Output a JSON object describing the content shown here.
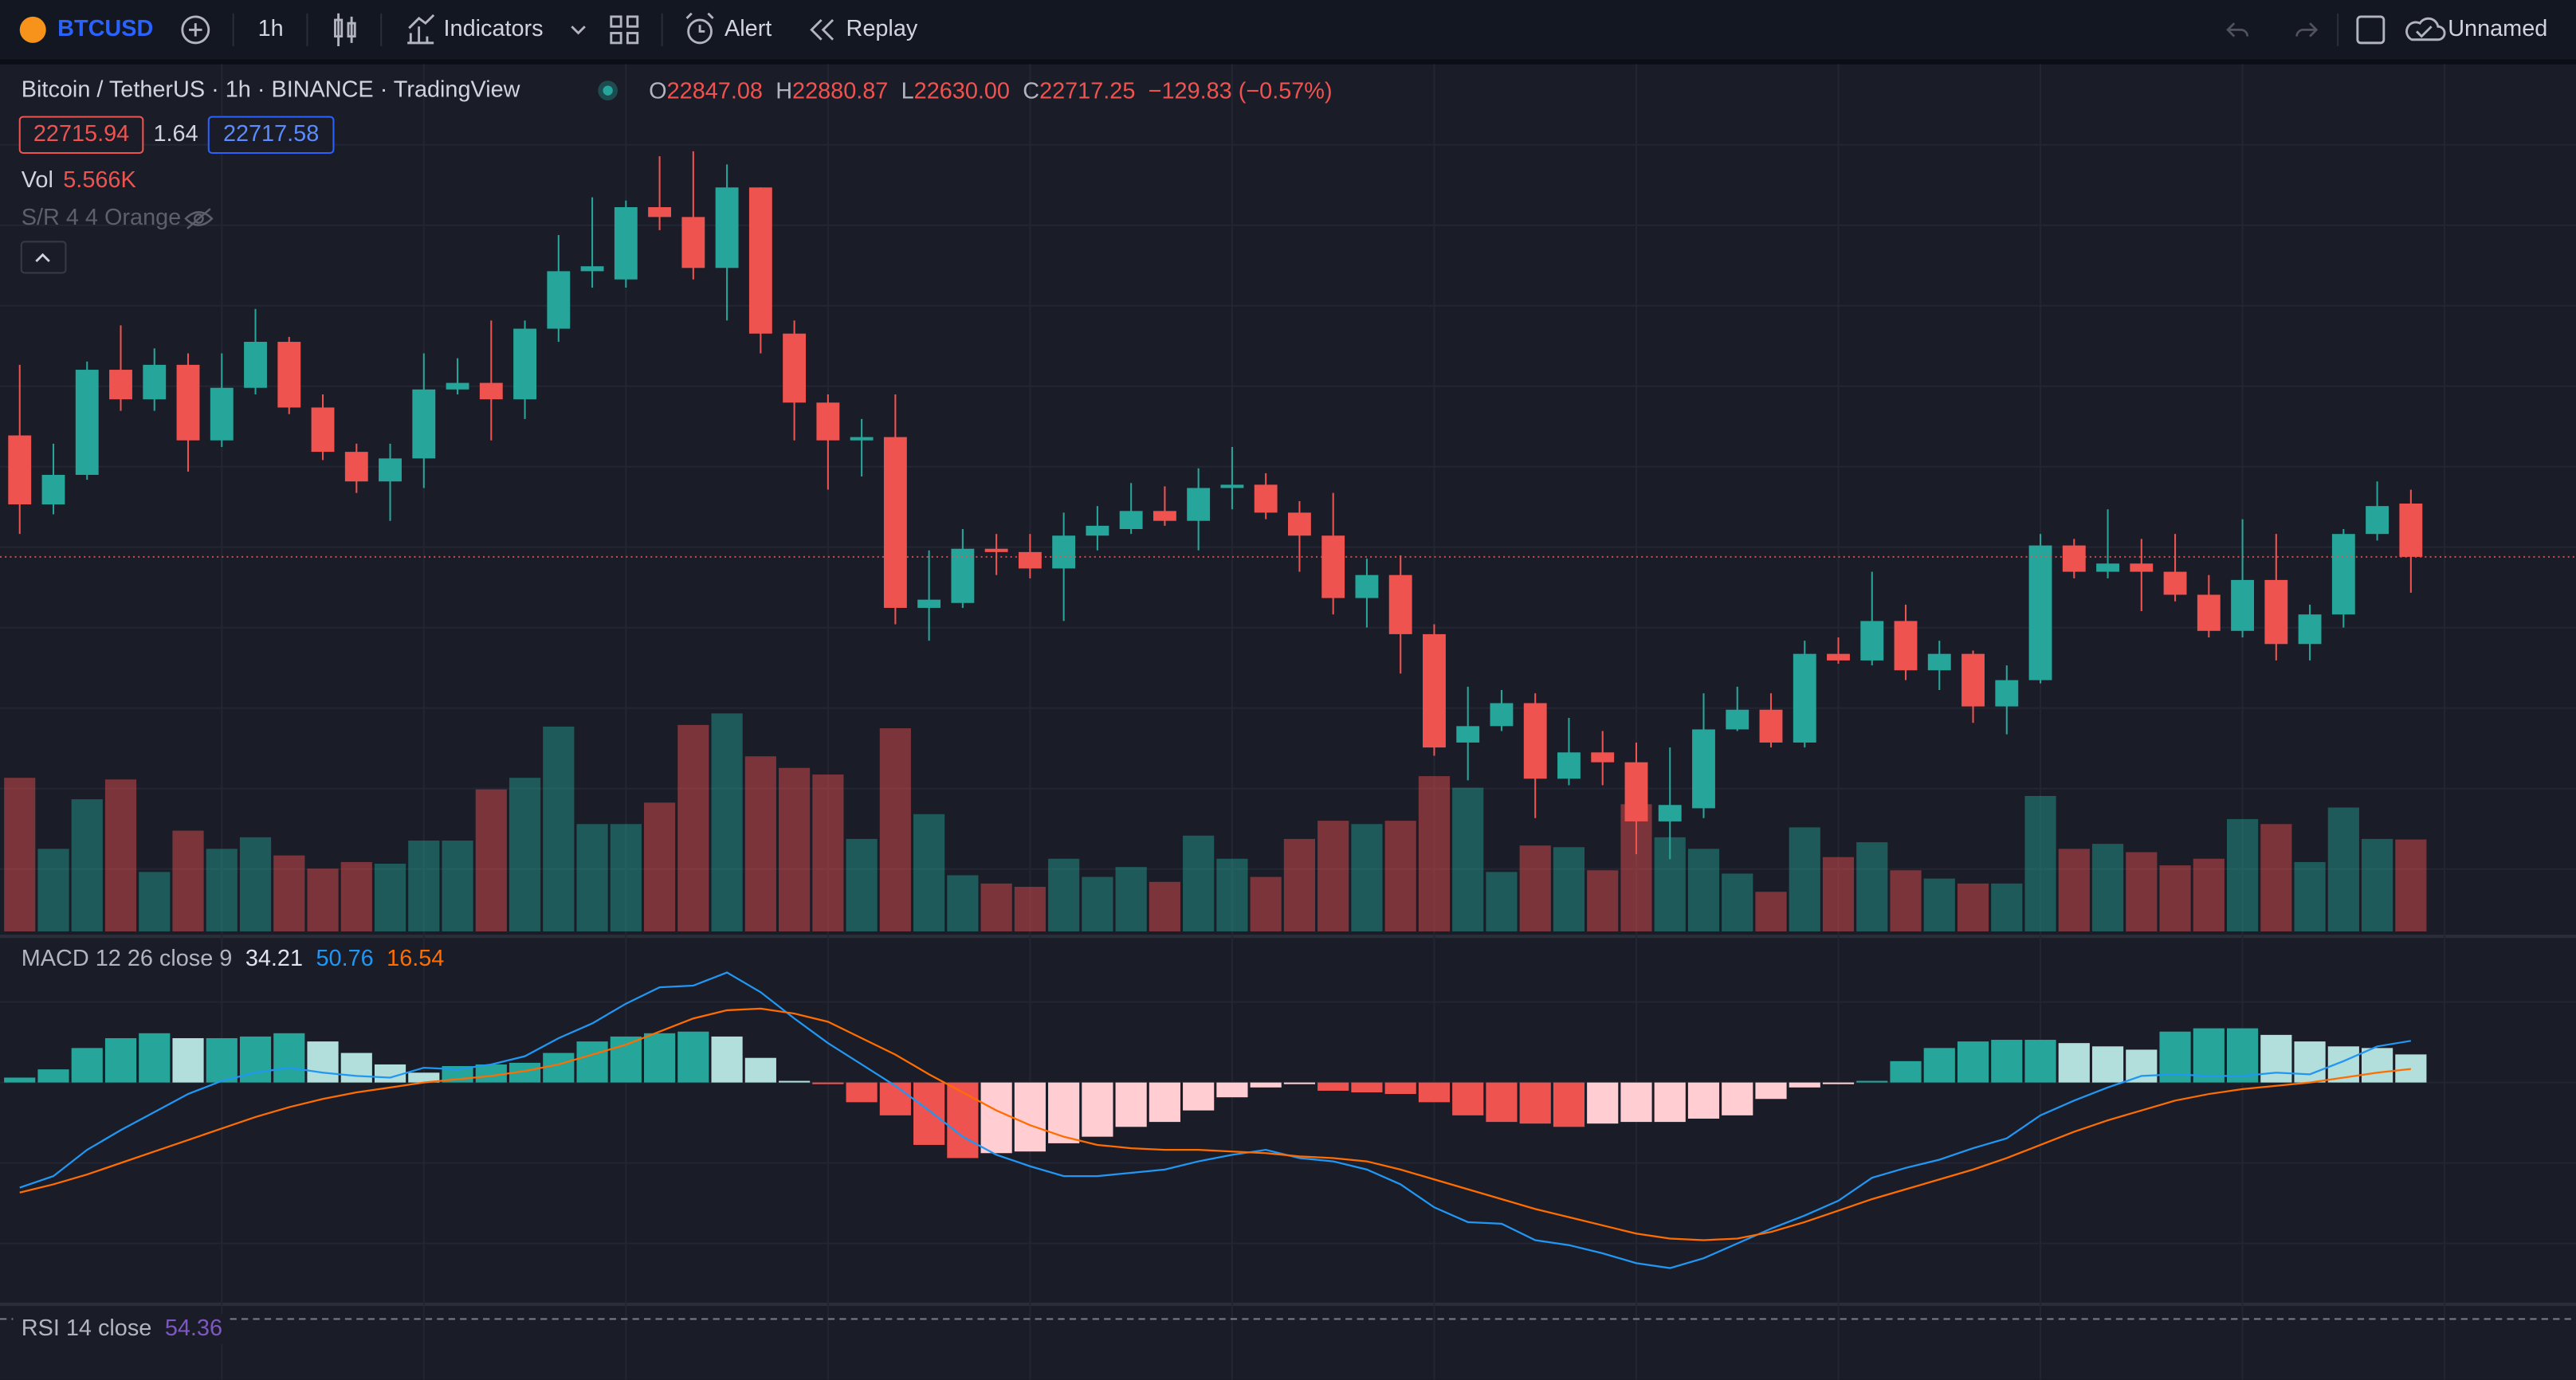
{
  "toolbar": {
    "symbol": "BTCUSD",
    "interval": "1h",
    "indicators": "Indicators",
    "alert": "Alert",
    "replay": "Replay",
    "layout_name": "Unnamed"
  },
  "legend": {
    "title": "Bitcoin / TetherUS · 1h · BINANCE · TradingView",
    "open_prefix": "O",
    "high_prefix": "H",
    "low_prefix": "L",
    "close_prefix": "C",
    "change": "−129.83 (−0.57%)",
    "bid": "22715.94",
    "spread": "1.64",
    "ask": "22717.58",
    "sr": "S/R 4 4 Orange",
    "rsi_title": "RSI 14 close",
    "rsi_value": "54.36"
  },
  "chart_data": [
    {
      "type": "candlestick",
      "open": [
        23013,
        22845,
        22917,
        23173,
        23101,
        23185,
        23001,
        23129,
        23241,
        23081,
        22973,
        22901,
        22957,
        23125,
        23141,
        23101,
        23273,
        23413,
        23393,
        23569,
        23545,
        23421,
        23617,
        23261,
        23093,
        23001,
        23009,
        22593,
        22605,
        22737,
        22729,
        22689,
        22769,
        22785,
        22829,
        22805,
        22885,
        22893,
        22825,
        22769,
        22617,
        22673,
        22529,
        22265,
        22305,
        22361,
        22177,
        22241,
        22217,
        22073,
        22105,
        22297,
        22345,
        22265,
        22481,
        22465,
        22561,
        22441,
        22481,
        22353,
        22417,
        22745,
        22681,
        22701,
        22681,
        22625,
        22537,
        22661,
        22505,
        22577,
        22773,
        22847.08
      ],
      "high": [
        23185,
        22993,
        23193,
        23281,
        23225,
        23213,
        23213,
        23321,
        23253,
        23113,
        22993,
        22993,
        23213,
        23201,
        23293,
        23293,
        23501,
        23593,
        23585,
        23693,
        23705,
        23673,
        23617,
        23293,
        23113,
        23053,
        23113,
        22733,
        22785,
        22773,
        22773,
        22825,
        22841,
        22897,
        22889,
        22933,
        22985,
        22921,
        22853,
        22873,
        22713,
        22721,
        22553,
        22401,
        22393,
        22385,
        22325,
        22293,
        22265,
        22253,
        22385,
        22401,
        22385,
        22513,
        22521,
        22681,
        22601,
        22513,
        22489,
        22453,
        22773,
        22761,
        22833,
        22761,
        22773,
        22673,
        22809,
        22773,
        22601,
        22785,
        22901,
        22880.87
      ],
      "low": [
        22773,
        22821,
        22905,
        23073,
        23073,
        22925,
        22985,
        23113,
        23065,
        22953,
        22873,
        22805,
        22885,
        23113,
        23001,
        23053,
        23241,
        23373,
        23373,
        23513,
        23393,
        23293,
        23213,
        23001,
        22881,
        22913,
        22553,
        22513,
        22593,
        22673,
        22665,
        22561,
        22733,
        22773,
        22793,
        22733,
        22833,
        22809,
        22681,
        22577,
        22545,
        22433,
        22233,
        22173,
        22293,
        22081,
        22161,
        22161,
        21993,
        21981,
        22081,
        22293,
        22253,
        22253,
        22457,
        22453,
        22417,
        22393,
        22313,
        22285,
        22409,
        22665,
        22665,
        22585,
        22609,
        22521,
        22521,
        22465,
        22465,
        22545,
        22757,
        22630
      ],
      "close": [
        22845,
        22917,
        23173,
        23101,
        23185,
        23001,
        23129,
        23241,
        23081,
        22973,
        22901,
        22957,
        23125,
        23141,
        23101,
        23273,
        23413,
        23425,
        23569,
        23545,
        23421,
        23617,
        23261,
        23093,
        23001,
        23009,
        22593,
        22613,
        22737,
        22729,
        22689,
        22769,
        22793,
        22829,
        22805,
        22885,
        22893,
        22825,
        22769,
        22617,
        22673,
        22529,
        22253,
        22305,
        22361,
        22177,
        22241,
        22217,
        22073,
        22113,
        22297,
        22345,
        22265,
        22481,
        22465,
        22561,
        22441,
        22481,
        22353,
        22417,
        22745,
        22681,
        22701,
        22681,
        22625,
        22537,
        22661,
        22505,
        22577,
        22773,
        22841,
        22717.25
      ],
      "last_low_label": "22630.00",
      "up_color": "#26a69a",
      "down_color": "#ef5350",
      "ylim": [
        21805,
        23913
      ],
      "grid": true
    },
    {
      "type": "volume",
      "title": "Vol",
      "values": [
        9300,
        5000,
        8000,
        9200,
        3600,
        6100,
        5000,
        5700,
        4600,
        3800,
        4200,
        4100,
        5500,
        5500,
        8600,
        9300,
        12400,
        6500,
        6500,
        7800,
        12500,
        13200,
        10600,
        9900,
        9500,
        5600,
        12300,
        7100,
        3400,
        2900,
        2700,
        4400,
        3300,
        3900,
        3000,
        5800,
        4400,
        3300,
        5600,
        6700,
        6500,
        6700,
        9400,
        8700,
        3600,
        5200,
        5100,
        3700,
        7700,
        5700,
        5000,
        3500,
        2400,
        6300,
        4500,
        5400,
        3700,
        3200,
        2900,
        2900,
        8200,
        5000,
        5300,
        4800,
        4000,
        4400,
        6800,
        6500,
        4200,
        7500,
        5600,
        5566
      ],
      "last_label": "5.566K",
      "up_color": "#26a69a",
      "down_color": "#ef5350",
      "ylim": [
        0,
        52400
      ]
    },
    {
      "type": "macd",
      "title": "MACD 12 26 close 9",
      "histogram": [
        6,
        16,
        42,
        54,
        60,
        54,
        54,
        56,
        60,
        50,
        36,
        22,
        12,
        20,
        22,
        24,
        36,
        50,
        56,
        60,
        62,
        56,
        30,
        2,
        -2,
        -24,
        -40,
        -76,
        -92,
        -86,
        -84,
        -74,
        -66,
        -54,
        -48,
        -34,
        -18,
        -6,
        -2,
        -10,
        -12,
        -14,
        -24,
        -40,
        -48,
        -50,
        -54,
        -50,
        -48,
        -48,
        -44,
        -40,
        -20,
        -6,
        -2,
        2,
        26,
        42,
        50,
        52,
        52,
        48,
        44,
        40,
        62,
        66,
        66,
        58,
        50,
        44,
        42,
        34.21
      ],
      "macd": [
        -128,
        -114,
        -82,
        -58,
        -36,
        -14,
        2,
        12,
        18,
        12,
        8,
        6,
        18,
        16,
        22,
        32,
        54,
        72,
        96,
        116,
        118,
        134,
        110,
        78,
        48,
        22,
        -4,
        -34,
        -66,
        -88,
        -102,
        -114,
        -114,
        -110,
        -106,
        -96,
        -88,
        -82,
        -92,
        -96,
        -106,
        -124,
        -152,
        -170,
        -172,
        -192,
        -198,
        -208,
        -220,
        -226,
        -214,
        -196,
        -178,
        -162,
        -144,
        -116,
        -104,
        -94,
        -80,
        -68,
        -40,
        -22,
        -6,
        8,
        10,
        8,
        8,
        12,
        10,
        26,
        44,
        50.76
      ],
      "signal": [
        -134,
        -124,
        -112,
        -98,
        -84,
        -70,
        -56,
        -42,
        -30,
        -20,
        -12,
        -6,
        0,
        4,
        8,
        14,
        22,
        34,
        46,
        62,
        78,
        88,
        90,
        84,
        74,
        54,
        34,
        10,
        -12,
        -34,
        -52,
        -66,
        -76,
        -80,
        -82,
        -82,
        -84,
        -86,
        -90,
        -92,
        -96,
        -106,
        -118,
        -130,
        -142,
        -154,
        -164,
        -174,
        -184,
        -190,
        -192,
        -190,
        -182,
        -170,
        -156,
        -142,
        -130,
        -118,
        -106,
        -92,
        -76,
        -60,
        -46,
        -34,
        -22,
        -14,
        -8,
        -4,
        0,
        6,
        12,
        16.54
      ],
      "histogram_colors": [
        "#26a69a",
        "#b2dfdb",
        "#ef5350",
        "#ffcdd2"
      ],
      "macd_color": "#2196f3",
      "signal_color": "#ff6d00",
      "ylim": [
        -262,
        178
      ]
    }
  ]
}
